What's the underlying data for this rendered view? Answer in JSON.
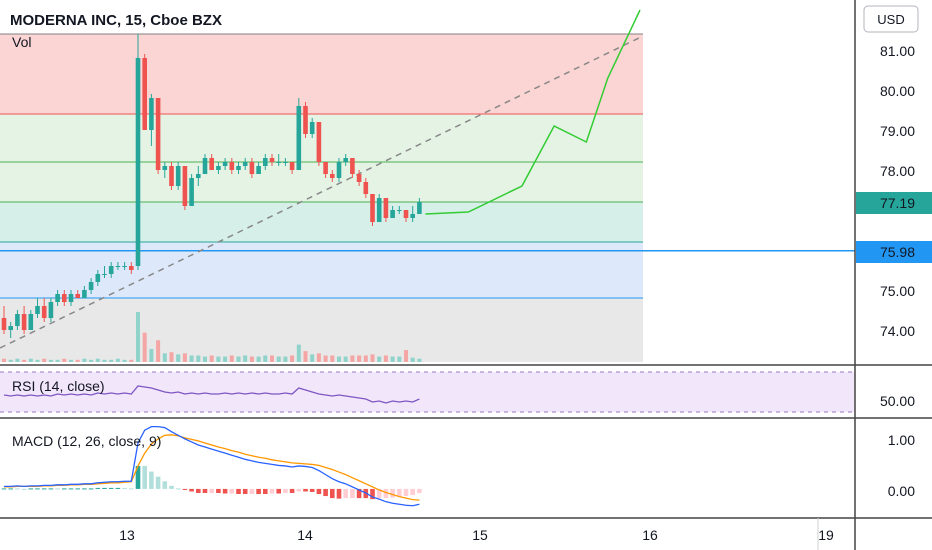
{
  "header": {
    "symbol_line": "MODERNA INC, 15, Cboe BZX",
    "vol_label": "Vol",
    "currency": "USD"
  },
  "price_axis": {
    "ticks": [
      "74.00",
      "75.00",
      "77.00",
      "78.00",
      "79.00",
      "80.00",
      "81.00"
    ],
    "last_price_badge": "77.19",
    "line_price_badge": "75.98"
  },
  "time_axis": {
    "ticks": [
      "13",
      "14",
      "15",
      "16",
      "19"
    ]
  },
  "rsi": {
    "label": "RSI (14, close)",
    "tick": "50.00"
  },
  "macd": {
    "label": "MACD (12, 26, close, 9)",
    "ticks": [
      "1.00",
      "0.00"
    ]
  },
  "colors": {
    "up": "#26a69a",
    "down": "#ef5350",
    "forecast": "#33cc33",
    "macd_line": "#2962ff",
    "signal_line": "#ff9800",
    "rsi_line": "#7e57c2",
    "fib_red": "#fbd5d3",
    "fib_green": "#e5f3e5",
    "fib_teal": "#d6efe9",
    "fib_blue": "#dde9fa",
    "fib_grey": "#e8e8e8",
    "horizontal_line": "#2196f3"
  },
  "chart_data": {
    "type": "candlestick",
    "title": "MODERNA INC, 15, Cboe BZX",
    "candles_ohlc": [
      [
        74.3,
        74.6,
        73.9,
        74.0
      ],
      [
        74.0,
        74.2,
        73.8,
        74.1
      ],
      [
        74.1,
        74.5,
        74.0,
        74.4
      ],
      [
        74.4,
        74.6,
        73.9,
        74.0
      ],
      [
        74.0,
        74.5,
        74.0,
        74.4
      ],
      [
        74.4,
        74.8,
        74.3,
        74.6
      ],
      [
        74.6,
        74.8,
        74.2,
        74.3
      ],
      [
        74.3,
        74.8,
        74.2,
        74.7
      ],
      [
        74.7,
        75.0,
        74.6,
        74.9
      ],
      [
        74.9,
        75.0,
        74.6,
        74.7
      ],
      [
        74.7,
        75.0,
        74.6,
        74.9
      ],
      [
        74.9,
        75.0,
        74.8,
        74.8
      ],
      [
        74.8,
        75.1,
        74.8,
        75.0
      ],
      [
        75.0,
        75.3,
        74.9,
        75.2
      ],
      [
        75.2,
        75.5,
        75.1,
        75.4
      ],
      [
        75.4,
        75.6,
        75.3,
        75.4
      ],
      [
        75.4,
        75.7,
        75.3,
        75.6
      ],
      [
        75.6,
        75.7,
        75.5,
        75.6
      ],
      [
        75.6,
        75.7,
        75.5,
        75.6
      ],
      [
        75.6,
        75.7,
        75.4,
        75.5
      ],
      [
        75.6,
        81.4,
        75.5,
        80.8
      ],
      [
        80.8,
        80.9,
        79.0,
        79.0
      ],
      [
        79.0,
        79.9,
        78.6,
        79.8
      ],
      [
        79.8,
        79.8,
        77.9,
        78.0
      ],
      [
        78.0,
        78.2,
        77.8,
        78.1
      ],
      [
        78.1,
        78.2,
        77.5,
        77.6
      ],
      [
        77.6,
        78.2,
        77.5,
        78.1
      ],
      [
        78.1,
        78.1,
        77.0,
        77.1
      ],
      [
        77.1,
        77.9,
        77.1,
        77.8
      ],
      [
        77.8,
        78.1,
        77.6,
        77.9
      ],
      [
        77.9,
        78.4,
        77.9,
        78.3
      ],
      [
        78.3,
        78.4,
        78.0,
        78.0
      ],
      [
        78.0,
        78.2,
        77.9,
        78.1
      ],
      [
        78.1,
        78.3,
        78.0,
        78.2
      ],
      [
        78.2,
        78.3,
        77.9,
        78.0
      ],
      [
        78.0,
        78.2,
        77.9,
        78.1
      ],
      [
        78.1,
        78.3,
        78.0,
        78.2
      ],
      [
        78.2,
        78.3,
        77.8,
        77.9
      ],
      [
        77.9,
        78.2,
        77.9,
        78.1
      ],
      [
        78.1,
        78.4,
        78.0,
        78.3
      ],
      [
        78.3,
        78.4,
        78.1,
        78.2
      ],
      [
        78.2,
        78.4,
        78.1,
        78.2
      ],
      [
        78.2,
        78.3,
        78.1,
        78.2
      ],
      [
        78.2,
        78.2,
        77.9,
        78.0
      ],
      [
        78.0,
        79.8,
        78.0,
        79.6
      ],
      [
        79.6,
        79.7,
        78.8,
        78.9
      ],
      [
        78.9,
        79.3,
        78.8,
        79.2
      ],
      [
        79.2,
        79.2,
        78.1,
        78.2
      ],
      [
        78.2,
        78.2,
        77.8,
        77.9
      ],
      [
        77.9,
        78.0,
        77.7,
        77.8
      ],
      [
        77.8,
        78.3,
        77.7,
        78.2
      ],
      [
        78.2,
        78.4,
        78.1,
        78.3
      ],
      [
        78.3,
        78.3,
        77.8,
        77.9
      ],
      [
        77.9,
        78.0,
        77.6,
        77.7
      ],
      [
        77.7,
        77.8,
        77.3,
        77.4
      ],
      [
        77.4,
        77.4,
        76.6,
        76.7
      ],
      [
        76.7,
        77.4,
        76.7,
        77.3
      ],
      [
        77.3,
        77.3,
        76.7,
        76.8
      ],
      [
        76.8,
        77.1,
        76.8,
        77.0
      ],
      [
        77.0,
        77.1,
        76.9,
        77.0
      ],
      [
        77.0,
        77.0,
        76.7,
        76.8
      ],
      [
        76.8,
        77.1,
        76.7,
        76.9
      ],
      [
        76.9,
        77.3,
        76.9,
        77.2
      ]
    ],
    "volume": [
      3,
      2,
      3,
      2,
      3,
      2,
      3,
      2,
      2,
      3,
      2,
      2,
      3,
      2,
      3,
      2,
      2,
      3,
      2,
      2,
      46,
      27,
      12,
      20,
      8,
      9,
      7,
      8,
      6,
      6,
      5,
      6,
      5,
      5,
      6,
      5,
      6,
      5,
      5,
      6,
      6,
      5,
      5,
      6,
      16,
      10,
      7,
      8,
      6,
      6,
      5,
      5,
      6,
      6,
      6,
      7,
      5,
      6,
      5,
      5,
      11,
      4,
      3
    ],
    "forecast_path": [
      [
        76.9,
        0
      ],
      [
        76.95,
        0.2
      ],
      [
        77.6,
        0.45
      ],
      [
        79.1,
        0.6
      ],
      [
        78.7,
        0.75
      ],
      [
        80.3,
        0.85
      ],
      [
        82.0,
        1.0
      ]
    ],
    "fib_levels": [
      81.4,
      79.4,
      78.2,
      77.2,
      76.2,
      74.8
    ],
    "horizontal_line": 75.98,
    "trend_line": {
      "from": 73.55,
      "to": 81.35
    },
    "price_ylim": [
      73.2,
      81.8
    ],
    "rsi_values": [
      47,
      46,
      47,
      46,
      47,
      46,
      47,
      46,
      48,
      47,
      48,
      47,
      48,
      47,
      49,
      48,
      49,
      48,
      49,
      48,
      56,
      55,
      54,
      52,
      50,
      49,
      50,
      48,
      49,
      48,
      49,
      48,
      48,
      49,
      48,
      49,
      48,
      49,
      48,
      49,
      48,
      48,
      49,
      48,
      54,
      52,
      50,
      48,
      47,
      46,
      47,
      46,
      45,
      44,
      43,
      40,
      41,
      39,
      41,
      40,
      41,
      40,
      43
    ],
    "rsi_ylim": [
      25,
      75
    ],
    "macd_values": [
      0.05,
      0.05,
      0.06,
      0.05,
      0.06,
      0.06,
      0.07,
      0.07,
      0.08,
      0.08,
      0.09,
      0.09,
      0.1,
      0.1,
      0.12,
      0.13,
      0.14,
      0.14,
      0.15,
      0.15,
      0.9,
      1.15,
      1.22,
      1.22,
      1.2,
      1.12,
      1.05,
      0.98,
      0.92,
      0.86,
      0.82,
      0.78,
      0.74,
      0.7,
      0.66,
      0.62,
      0.58,
      0.55,
      0.52,
      0.5,
      0.48,
      0.46,
      0.45,
      0.43,
      0.45,
      0.44,
      0.42,
      0.36,
      0.28,
      0.2,
      0.14,
      0.1,
      0.04,
      -0.02,
      -0.08,
      -0.16,
      -0.2,
      -0.25,
      -0.28,
      -0.3,
      -0.32,
      -0.33,
      -0.3
    ],
    "signal_values": [
      0.04,
      0.04,
      0.05,
      0.05,
      0.05,
      0.05,
      0.06,
      0.06,
      0.07,
      0.07,
      0.08,
      0.08,
      0.09,
      0.09,
      0.1,
      0.11,
      0.12,
      0.12,
      0.13,
      0.14,
      0.45,
      0.7,
      0.88,
      0.98,
      1.05,
      1.06,
      1.04,
      1.0,
      0.97,
      0.94,
      0.9,
      0.86,
      0.82,
      0.79,
      0.75,
      0.72,
      0.68,
      0.65,
      0.62,
      0.6,
      0.57,
      0.55,
      0.53,
      0.51,
      0.5,
      0.49,
      0.48,
      0.46,
      0.42,
      0.38,
      0.33,
      0.28,
      0.22,
      0.16,
      0.1,
      0.04,
      -0.02,
      -0.07,
      -0.11,
      -0.15,
      -0.18,
      -0.21,
      -0.22
    ],
    "macd_ylim": [
      -0.55,
      1.35
    ]
  }
}
